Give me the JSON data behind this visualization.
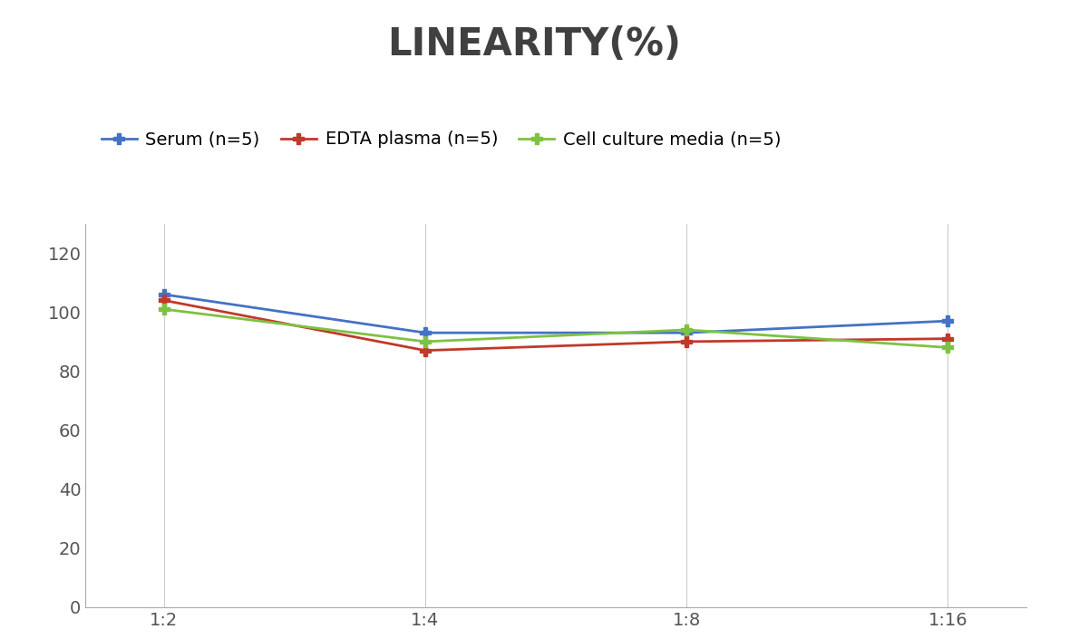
{
  "title": "LINEARITY(%)",
  "title_fontsize": 30,
  "title_fontweight": "bold",
  "title_color": "#404040",
  "x_labels": [
    "1:2",
    "1:4",
    "1:8",
    "1:16"
  ],
  "x_positions": [
    0,
    1,
    2,
    3
  ],
  "series": [
    {
      "label": "Serum (n=5)",
      "values": [
        106,
        93,
        93,
        97
      ],
      "color": "#4472C4",
      "marker": "P",
      "marker_size": 9,
      "linewidth": 2
    },
    {
      "label": "EDTA plasma (n=5)",
      "values": [
        104,
        87,
        90,
        91
      ],
      "color": "#C0392B",
      "marker": "P",
      "marker_size": 9,
      "linewidth": 2
    },
    {
      "label": "Cell culture media (n=5)",
      "values": [
        101,
        90,
        94,
        88
      ],
      "color": "#7DC242",
      "marker": "P",
      "marker_size": 9,
      "linewidth": 2
    }
  ],
  "ylim": [
    0,
    130
  ],
  "yticks": [
    0,
    20,
    40,
    60,
    80,
    100,
    120
  ],
  "grid_color": "#CCCCCC",
  "grid_linewidth": 0.8,
  "background_color": "#FFFFFF",
  "legend_fontsize": 14,
  "tick_fontsize": 14,
  "xlabel": "",
  "ylabel": ""
}
